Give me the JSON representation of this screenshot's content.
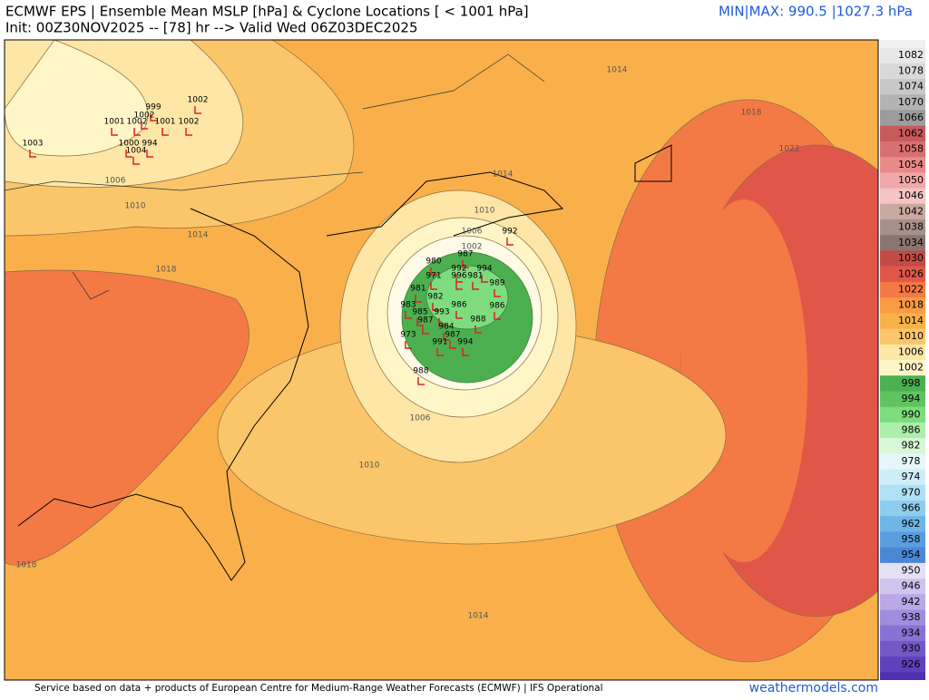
{
  "header": {
    "title": "ECMWF EPS | Ensemble Mean MSLP [hPa] & Cyclone Locations [ < 1001 hPa]",
    "subtitle": "Init: 00Z30NOV2025 -- [78] hr --> Valid Wed 06Z03DEC2025",
    "minmax": "MIN|MAX: 990.5 |1027.3 hPa"
  },
  "colorbar": {
    "ticks": [
      1082,
      1078,
      1074,
      1070,
      1066,
      1062,
      1058,
      1054,
      1050,
      1046,
      1042,
      1038,
      1034,
      1030,
      1026,
      1022,
      1018,
      1014,
      1010,
      1006,
      1002,
      998,
      994,
      990,
      986,
      982,
      978,
      974,
      970,
      966,
      962,
      958,
      954,
      950,
      946,
      942,
      938,
      934,
      930,
      926
    ],
    "colors": [
      "#e8e8e8",
      "#d9d9d9",
      "#c8c8c8",
      "#b3b3b3",
      "#9c9c9c",
      "#c85a5a",
      "#d97070",
      "#e88a8a",
      "#f0a8a8",
      "#f5c4c4",
      "#c9a9a0",
      "#a8908a",
      "#8a7570",
      "#c44a45",
      "#e0574a",
      "#f47a45",
      "#f99a45",
      "#f9b04a",
      "#fbc56a",
      "#fde6a6",
      "#fff6c8",
      "#4caf50",
      "#5fc45f",
      "#7ddc7d",
      "#aaf0aa",
      "#d6f8d6",
      "#e6f7fb",
      "#cdeef8",
      "#b0e0f4",
      "#8fcdef",
      "#6fb6e6",
      "#5a9ee0",
      "#4a88d6",
      "#e6e0f5",
      "#cfc4ee",
      "#b8a8e6",
      "#a08ddd",
      "#8a72d4",
      "#7458c8",
      "#6040bc"
    ]
  },
  "contours": [
    "1014",
    "1018",
    "1022",
    "1006",
    "1010",
    "1014",
    "1018",
    "1014",
    "1010",
    "1006",
    "1002",
    "1006",
    "1010",
    "1018",
    "1014"
  ],
  "cyclones": [
    "1002",
    "999",
    "1002",
    "1001",
    "1002",
    "1001",
    "1002",
    "1003",
    "1000",
    "1004",
    "994",
    "992",
    "987",
    "980",
    "992",
    "994",
    "971",
    "996",
    "981",
    "981",
    "989",
    "982",
    "983",
    "986",
    "985",
    "993",
    "986",
    "987",
    "988",
    "984",
    "973",
    "987",
    "991",
    "994",
    "988"
  ],
  "footer": {
    "credit": "Service based on data + products of European Centre for Medium-Range Weather Forecasts (ECMWF) | IFS Operational",
    "site": "weathermodels.com"
  }
}
